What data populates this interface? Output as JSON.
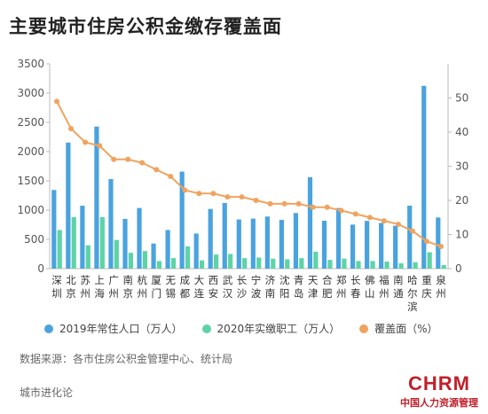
{
  "title": "主要城市住房公积金缴存覆盖面",
  "legend": {
    "pop": "2019年常住人口（万人）",
    "workers": "2020年实缴职工（万人）",
    "coverage": "覆盖面（%）"
  },
  "source": "数据来源：各市住房公积金管理中心、统计局",
  "footer": "城市进化论",
  "watermark": {
    "logo": "CHRM",
    "sub": "中国人力资源管理"
  },
  "colors": {
    "pop": "#4aa3df",
    "workers": "#5dd3a6",
    "coverage": "#f0a35e",
    "axis": "#bbbbbb"
  },
  "chart_data": {
    "type": "bar",
    "title": "主要城市住房公积金缴存覆盖面",
    "categories": [
      "深圳",
      "北京",
      "苏州",
      "上海",
      "广州",
      "南京",
      "杭州",
      "厦门",
      "无锡",
      "成都",
      "大连",
      "西安",
      "武汉",
      "长沙",
      "宁波",
      "济南",
      "沈阳",
      "青岛",
      "天津",
      "合肥",
      "郑州",
      "长春",
      "佛山",
      "福州",
      "南通",
      "哈尔滨",
      "重庆",
      "泉州"
    ],
    "category_labels": [
      [
        "深",
        "圳"
      ],
      [
        "北",
        "京"
      ],
      [
        "苏",
        "州"
      ],
      [
        "上",
        "海"
      ],
      [
        "广",
        "州"
      ],
      [
        "南",
        "京"
      ],
      [
        "杭",
        "州"
      ],
      [
        "厦",
        "门"
      ],
      [
        "无",
        "锡"
      ],
      [
        "成",
        "都"
      ],
      [
        "大",
        "连"
      ],
      [
        "西",
        "安"
      ],
      [
        "武",
        "汉"
      ],
      [
        "长",
        "沙"
      ],
      [
        "宁",
        "波"
      ],
      [
        "济",
        "南"
      ],
      [
        "沈",
        "阳"
      ],
      [
        "青",
        "岛"
      ],
      [
        "天",
        "津"
      ],
      [
        "合",
        "肥"
      ],
      [
        "郑",
        "州"
      ],
      [
        "长",
        "春"
      ],
      [
        "佛",
        "山"
      ],
      [
        "福",
        "州"
      ],
      [
        "南",
        "通"
      ],
      [
        "哈",
        "尔",
        "滨"
      ],
      [
        "重",
        "庆"
      ],
      [
        "泉",
        "州"
      ]
    ],
    "series": [
      {
        "name": "2019年常住人口（万人）",
        "axis": "left",
        "kind": "bar",
        "values": [
          1344,
          2154,
          1075,
          2428,
          1531,
          850,
          1036,
          429,
          660,
          1658,
          600,
          1020,
          1121,
          840,
          854,
          890,
          832,
          950,
          1562,
          818,
          1035,
          752,
          816,
          780,
          733,
          1076,
          3124,
          874
        ]
      },
      {
        "name": "2020年实缴职工（万人）",
        "axis": "left",
        "kind": "bar",
        "values": [
          660,
          880,
          400,
          880,
          490,
          270,
          300,
          130,
          180,
          380,
          140,
          240,
          250,
          180,
          190,
          170,
          160,
          180,
          290,
          150,
          170,
          130,
          130,
          120,
          90,
          110,
          280,
          60
        ]
      },
      {
        "name": "覆盖面（%）",
        "axis": "right",
        "kind": "line",
        "values": [
          49,
          41,
          37,
          36,
          32,
          32,
          31,
          29,
          27,
          23,
          22,
          22,
          21,
          21,
          20,
          19,
          19,
          19,
          18,
          18,
          17,
          16,
          15,
          14,
          13,
          11,
          8,
          6.5
        ]
      }
    ],
    "ylim_left": [
      0,
      3500
    ],
    "yticks_left": [
      0,
      500,
      1000,
      1500,
      2000,
      2500,
      3000,
      3500
    ],
    "ylim_right": [
      0,
      60
    ],
    "yticks_right": [
      0,
      10,
      20,
      30,
      40,
      50
    ],
    "grid": false,
    "legend_position": "bottom"
  }
}
